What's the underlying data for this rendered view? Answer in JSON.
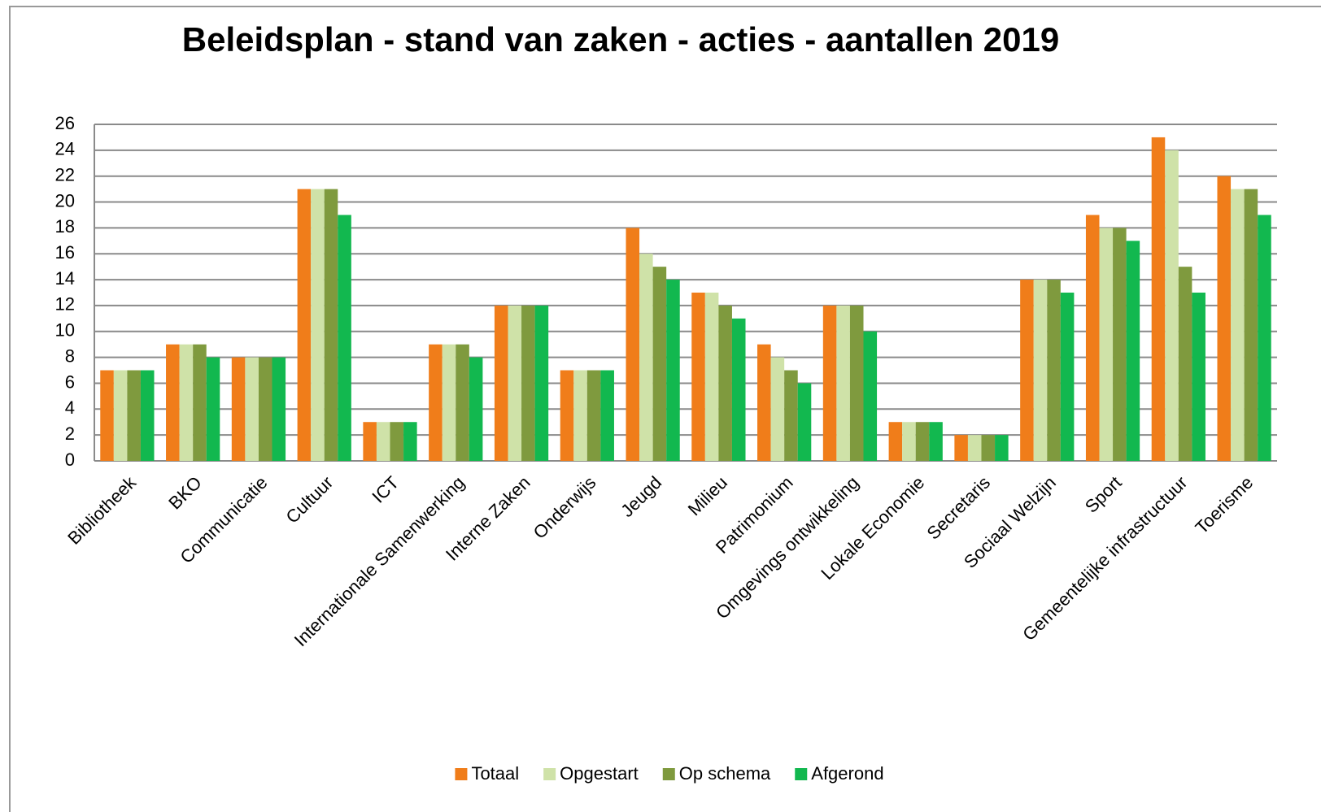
{
  "chart_data": {
    "type": "bar",
    "title": "Beleidsplan - stand van zaken - acties - aantallen 2019",
    "categories": [
      "Bibliotheek",
      "BKO",
      "Communicatie",
      "Cultuur",
      "ICT",
      "Internationale Samenwerking",
      "Interne Zaken",
      "Onderwijs",
      "Jeugd",
      "Milieu",
      "Patrimonium",
      "Omgevings ontwikkeling",
      "Lokale Economie",
      "Secretaris",
      "Sociaal Welzijn",
      "Sport",
      "Gemeentelijke infrastructuur",
      "Toerisme"
    ],
    "series": [
      {
        "name": "Totaal",
        "color": "#f07d1a",
        "values": [
          7,
          9,
          8,
          21,
          3,
          9,
          12,
          7,
          18,
          13,
          9,
          12,
          3,
          2,
          14,
          19,
          25,
          22
        ]
      },
      {
        "name": "Opgestart",
        "color": "#cfe2a8",
        "values": [
          7,
          9,
          8,
          21,
          3,
          9,
          12,
          7,
          16,
          13,
          8,
          12,
          3,
          2,
          14,
          18,
          24,
          21
        ]
      },
      {
        "name": "Op schema",
        "color": "#7f9a3e",
        "values": [
          7,
          9,
          8,
          21,
          3,
          9,
          12,
          7,
          15,
          12,
          7,
          12,
          3,
          2,
          14,
          18,
          15,
          21
        ]
      },
      {
        "name": "Afgerond",
        "color": "#12b84f",
        "values": [
          7,
          8,
          8,
          19,
          3,
          8,
          12,
          7,
          14,
          11,
          6,
          10,
          3,
          2,
          13,
          17,
          13,
          19
        ]
      }
    ],
    "ylim": [
      0,
      26
    ],
    "yticks": [
      0,
      2,
      4,
      6,
      8,
      10,
      12,
      14,
      16,
      18,
      20,
      22,
      24,
      26
    ],
    "grid": true,
    "legend": "bottom"
  }
}
